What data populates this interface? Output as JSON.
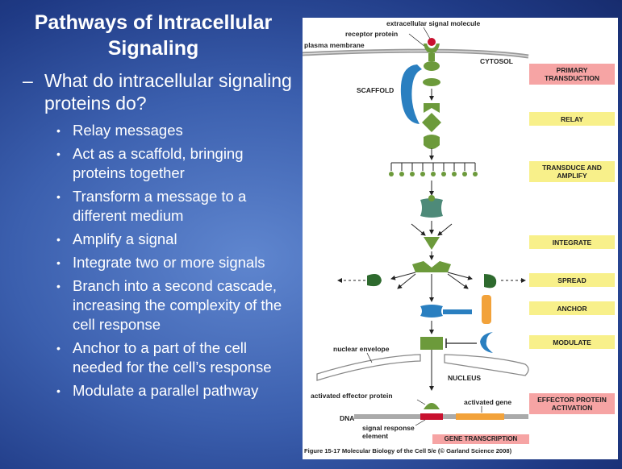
{
  "slide": {
    "title_line1": "Pathways of Intracellular",
    "title_line2": "Signaling",
    "question_dash": "–",
    "question": "What do intracellular signaling proteins do?",
    "bullet_glyph": "•",
    "bullets": [
      "Relay messages",
      "Act as a scaffold, bringing proteins together",
      "Transform a message to a different medium",
      "Amplify a signal",
      "Integrate two or more signals",
      "Branch into a second cascade, increasing the complexity of the cell response",
      "Anchor to a part of the cell needed for the cell’s response",
      "Modulate a parallel pathway"
    ]
  },
  "figure": {
    "labels": {
      "extracellular": "extracellular signal molecule",
      "receptor": "receptor protein",
      "plasma_membrane": "plasma membrane",
      "cytosol": "CYTOSOL",
      "scaffold": "SCAFFOLD",
      "nuclear_envelope": "nuclear envelope",
      "nucleus": "NUCLEUS",
      "activated_effector": "activated effector protein",
      "activated_gene": "activated gene",
      "dna": "DNA",
      "sre_line1": "signal response",
      "sre_line2": "element"
    },
    "steps": [
      {
        "label": "PRIMARY TRANSDUCTION",
        "color": "pink"
      },
      {
        "label": "RELAY",
        "color": "yellow"
      },
      {
        "label": "TRANSDUCE AND AMPLIFY",
        "color": "yellow"
      },
      {
        "label": "INTEGRATE",
        "color": "yellow"
      },
      {
        "label": "SPREAD",
        "color": "yellow"
      },
      {
        "label": "ANCHOR",
        "color": "yellow"
      },
      {
        "label": "MODULATE",
        "color": "yellow"
      },
      {
        "label": "EFFECTOR PROTEIN ACTIVATION",
        "color": "pink"
      }
    ],
    "gene_transcription": "GENE TRANSCRIPTION",
    "caption": "Figure 15-17  Molecular Biology of the Cell 5/e (© Garland Science 2008)",
    "colors": {
      "step_yellow": "#f8f08a",
      "step_pink": "#f6a4a4",
      "protein_green": "#6c9a3b",
      "scaffold_blue": "#2a7fc0",
      "signal_red": "#c8102e",
      "gene_orange": "#f2a23a"
    }
  }
}
